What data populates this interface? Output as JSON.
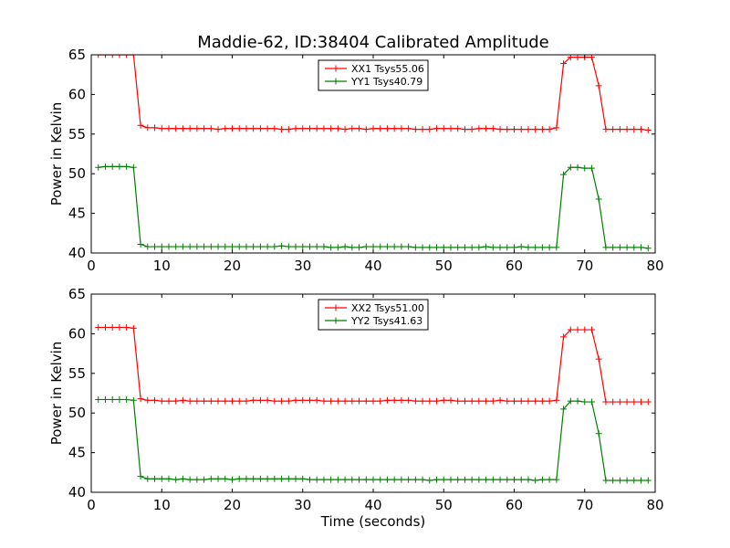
{
  "chart_data": [
    {
      "type": "line",
      "title": "Maddie-62, ID:38404 Calibrated Amplitude",
      "xlabel": "",
      "ylabel": "Power in Kelvin",
      "xlim": [
        0,
        80
      ],
      "ylim": [
        40,
        65
      ],
      "xticks": [
        0,
        10,
        20,
        30,
        40,
        50,
        60,
        70,
        80
      ],
      "yticks": [
        40,
        45,
        50,
        55,
        60,
        65
      ],
      "grid": false,
      "legend_position": "top-center",
      "series": [
        {
          "name": "XX1 Tsys55.06",
          "color": "#ff0000",
          "x": [
            1,
            2,
            3,
            4,
            5,
            6,
            7,
            8,
            9,
            10,
            11,
            12,
            13,
            14,
            15,
            16,
            17,
            18,
            19,
            20,
            21,
            22,
            23,
            24,
            25,
            26,
            27,
            28,
            29,
            30,
            31,
            32,
            33,
            34,
            35,
            36,
            37,
            38,
            39,
            40,
            41,
            42,
            43,
            44,
            45,
            46,
            47,
            48,
            49,
            50,
            51,
            52,
            53,
            54,
            55,
            56,
            57,
            58,
            59,
            60,
            61,
            62,
            63,
            64,
            65,
            66,
            67,
            68,
            69,
            70,
            71,
            72,
            73,
            74,
            75,
            76,
            77,
            78,
            79
          ],
          "y": [
            65.0,
            65.0,
            65.0,
            65.0,
            65.0,
            65.0,
            56.1,
            55.8,
            55.8,
            55.7,
            55.7,
            55.7,
            55.7,
            55.7,
            55.7,
            55.7,
            55.7,
            55.6,
            55.7,
            55.7,
            55.7,
            55.7,
            55.7,
            55.7,
            55.7,
            55.7,
            55.6,
            55.6,
            55.7,
            55.7,
            55.7,
            55.7,
            55.7,
            55.7,
            55.7,
            55.6,
            55.7,
            55.7,
            55.6,
            55.7,
            55.7,
            55.7,
            55.7,
            55.7,
            55.7,
            55.6,
            55.6,
            55.6,
            55.7,
            55.7,
            55.7,
            55.7,
            55.6,
            55.6,
            55.7,
            55.7,
            55.7,
            55.6,
            55.6,
            55.6,
            55.6,
            55.6,
            55.6,
            55.6,
            55.6,
            55.8,
            63.9,
            64.7,
            64.7,
            64.7,
            64.7,
            61.1,
            55.6,
            55.6,
            55.6,
            55.6,
            55.6,
            55.6,
            55.5
          ]
        },
        {
          "name": "YY1 Tsys40.79",
          "color": "#008000",
          "x": [
            1,
            2,
            3,
            4,
            5,
            6,
            7,
            8,
            9,
            10,
            11,
            12,
            13,
            14,
            15,
            16,
            17,
            18,
            19,
            20,
            21,
            22,
            23,
            24,
            25,
            26,
            27,
            28,
            29,
            30,
            31,
            32,
            33,
            34,
            35,
            36,
            37,
            38,
            39,
            40,
            41,
            42,
            43,
            44,
            45,
            46,
            47,
            48,
            49,
            50,
            51,
            52,
            53,
            54,
            55,
            56,
            57,
            58,
            59,
            60,
            61,
            62,
            63,
            64,
            65,
            66,
            67,
            68,
            69,
            70,
            71,
            72,
            73,
            74,
            75,
            76,
            77,
            78,
            79
          ],
          "y": [
            50.8,
            50.9,
            50.9,
            50.9,
            50.9,
            50.8,
            41.1,
            40.8,
            40.8,
            40.8,
            40.8,
            40.8,
            40.8,
            40.8,
            40.8,
            40.8,
            40.8,
            40.8,
            40.8,
            40.8,
            40.8,
            40.8,
            40.8,
            40.8,
            40.8,
            40.8,
            40.9,
            40.8,
            40.8,
            40.8,
            40.8,
            40.8,
            40.8,
            40.7,
            40.7,
            40.8,
            40.7,
            40.7,
            40.8,
            40.8,
            40.8,
            40.8,
            40.8,
            40.8,
            40.8,
            40.7,
            40.7,
            40.7,
            40.7,
            40.7,
            40.7,
            40.7,
            40.7,
            40.7,
            40.7,
            40.8,
            40.7,
            40.7,
            40.7,
            40.7,
            40.8,
            40.7,
            40.7,
            40.7,
            40.7,
            40.7,
            49.9,
            50.8,
            50.8,
            50.7,
            50.7,
            46.8,
            40.7,
            40.7,
            40.7,
            40.7,
            40.7,
            40.7,
            40.6
          ]
        }
      ]
    },
    {
      "type": "line",
      "title": "",
      "xlabel": "Time (seconds)",
      "ylabel": "Power in Kelvin",
      "xlim": [
        0,
        80
      ],
      "ylim": [
        40,
        65
      ],
      "xticks": [
        0,
        10,
        20,
        30,
        40,
        50,
        60,
        70,
        80
      ],
      "yticks": [
        40,
        45,
        50,
        55,
        60,
        65
      ],
      "grid": false,
      "legend_position": "top-center",
      "series": [
        {
          "name": "XX2 Tsys51.00",
          "color": "#ff0000",
          "x": [
            1,
            2,
            3,
            4,
            5,
            6,
            7,
            8,
            9,
            10,
            11,
            12,
            13,
            14,
            15,
            16,
            17,
            18,
            19,
            20,
            21,
            22,
            23,
            24,
            25,
            26,
            27,
            28,
            29,
            30,
            31,
            32,
            33,
            34,
            35,
            36,
            37,
            38,
            39,
            40,
            41,
            42,
            43,
            44,
            45,
            46,
            47,
            48,
            49,
            50,
            51,
            52,
            53,
            54,
            55,
            56,
            57,
            58,
            59,
            60,
            61,
            62,
            63,
            64,
            65,
            66,
            67,
            68,
            69,
            70,
            71,
            72,
            73,
            74,
            75,
            76,
            77,
            78,
            79
          ],
          "y": [
            60.8,
            60.8,
            60.8,
            60.8,
            60.8,
            60.7,
            51.8,
            51.6,
            51.6,
            51.5,
            51.5,
            51.5,
            51.6,
            51.5,
            51.5,
            51.5,
            51.5,
            51.5,
            51.5,
            51.5,
            51.5,
            51.5,
            51.6,
            51.6,
            51.6,
            51.5,
            51.5,
            51.5,
            51.6,
            51.6,
            51.6,
            51.6,
            51.5,
            51.5,
            51.5,
            51.5,
            51.5,
            51.5,
            51.5,
            51.5,
            51.5,
            51.6,
            51.6,
            51.6,
            51.6,
            51.5,
            51.5,
            51.5,
            51.5,
            51.6,
            51.6,
            51.5,
            51.5,
            51.5,
            51.5,
            51.5,
            51.5,
            51.6,
            51.5,
            51.5,
            51.5,
            51.5,
            51.5,
            51.5,
            51.5,
            51.6,
            59.6,
            60.5,
            60.5,
            60.5,
            60.5,
            56.8,
            51.4,
            51.4,
            51.4,
            51.4,
            51.4,
            51.4,
            51.4
          ]
        },
        {
          "name": "YY2 Tsys41.63",
          "color": "#008000",
          "x": [
            1,
            2,
            3,
            4,
            5,
            6,
            7,
            8,
            9,
            10,
            11,
            12,
            13,
            14,
            15,
            16,
            17,
            18,
            19,
            20,
            21,
            22,
            23,
            24,
            25,
            26,
            27,
            28,
            29,
            30,
            31,
            32,
            33,
            34,
            35,
            36,
            37,
            38,
            39,
            40,
            41,
            42,
            43,
            44,
            45,
            46,
            47,
            48,
            49,
            50,
            51,
            52,
            53,
            54,
            55,
            56,
            57,
            58,
            59,
            60,
            61,
            62,
            63,
            64,
            65,
            66,
            67,
            68,
            69,
            70,
            71,
            72,
            73,
            74,
            75,
            76,
            77,
            78,
            79
          ],
          "y": [
            51.7,
            51.7,
            51.7,
            51.7,
            51.7,
            51.6,
            42.0,
            41.7,
            41.7,
            41.7,
            41.7,
            41.6,
            41.7,
            41.6,
            41.6,
            41.6,
            41.7,
            41.7,
            41.7,
            41.6,
            41.7,
            41.7,
            41.7,
            41.7,
            41.7,
            41.7,
            41.7,
            41.7,
            41.7,
            41.7,
            41.6,
            41.6,
            41.6,
            41.6,
            41.6,
            41.6,
            41.6,
            41.6,
            41.6,
            41.6,
            41.6,
            41.6,
            41.6,
            41.6,
            41.6,
            41.6,
            41.6,
            41.5,
            41.6,
            41.6,
            41.6,
            41.6,
            41.6,
            41.6,
            41.6,
            41.6,
            41.6,
            41.6,
            41.6,
            41.6,
            41.6,
            41.6,
            41.5,
            41.6,
            41.6,
            41.6,
            50.5,
            51.5,
            51.5,
            51.4,
            51.4,
            47.4,
            41.5,
            41.5,
            41.5,
            41.5,
            41.5,
            41.5,
            41.5
          ]
        }
      ]
    }
  ]
}
